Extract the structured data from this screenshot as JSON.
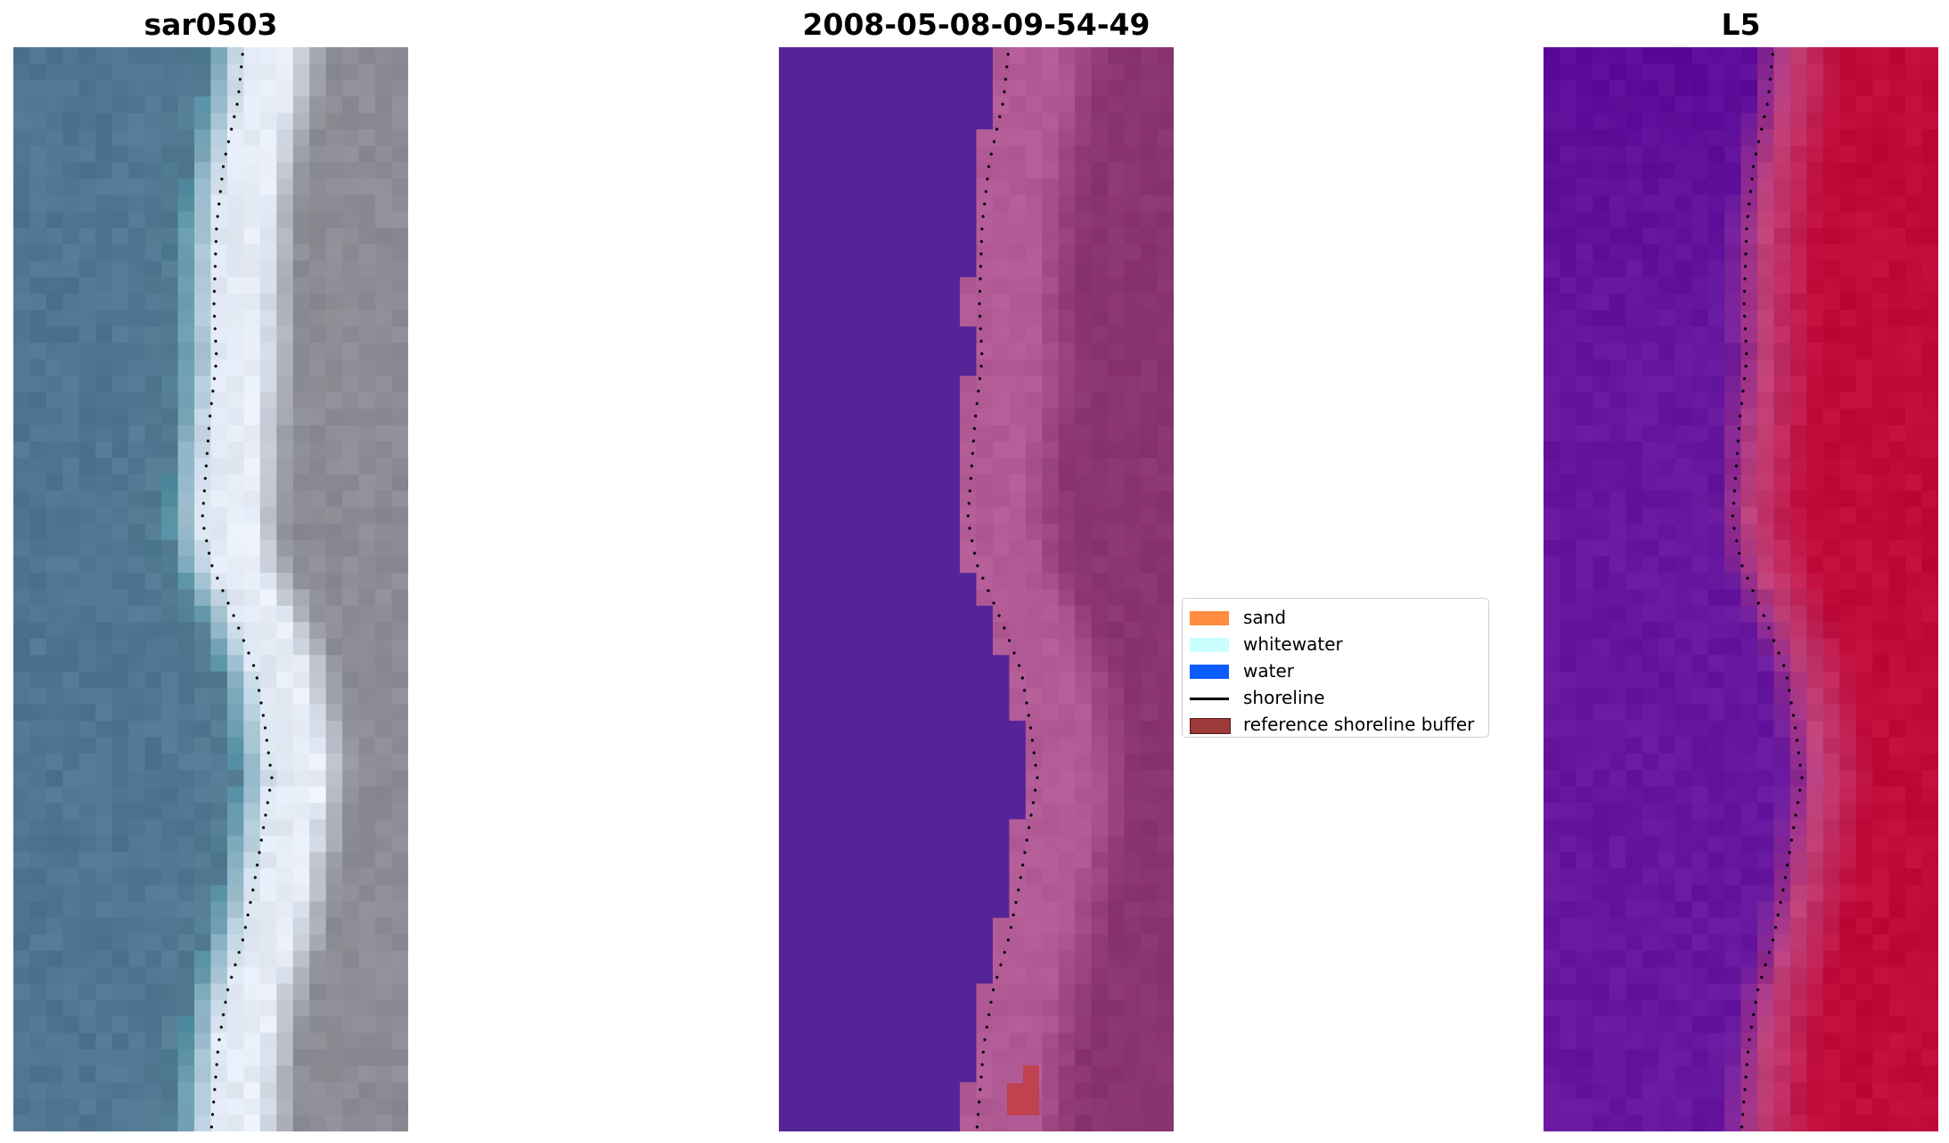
{
  "panels": {
    "rgb": {
      "title": "sar0503"
    },
    "classification": {
      "title": "2008-05-08-09-54-49"
    },
    "index": {
      "title": "L5"
    }
  },
  "legend": {
    "items": [
      {
        "label": "sand",
        "color": "#ff8c40",
        "kind": "swatch"
      },
      {
        "label": "whitewater",
        "color": "#c9ffff",
        "kind": "swatch"
      },
      {
        "label": "water",
        "color": "#0a5cff",
        "kind": "swatch"
      },
      {
        "label": "shoreline",
        "color": "#000000",
        "kind": "line"
      },
      {
        "label": "reference shoreline buffer",
        "color": "#9c3a3a",
        "kind": "swatch"
      }
    ]
  },
  "colors": {
    "rgb_water": "#4f7591",
    "rgb_whitewater": "#dfe8f4",
    "rgb_land": "#8c8c94",
    "class_water": "#552497",
    "class_buffer": "#b25a96",
    "class_land": "#8a3470",
    "class_highlight": "#c0424f",
    "index_low": "#6a1aa0",
    "index_mid": "#c0427a",
    "index_high": "#c00a3a",
    "shoreline": "#000000"
  }
}
